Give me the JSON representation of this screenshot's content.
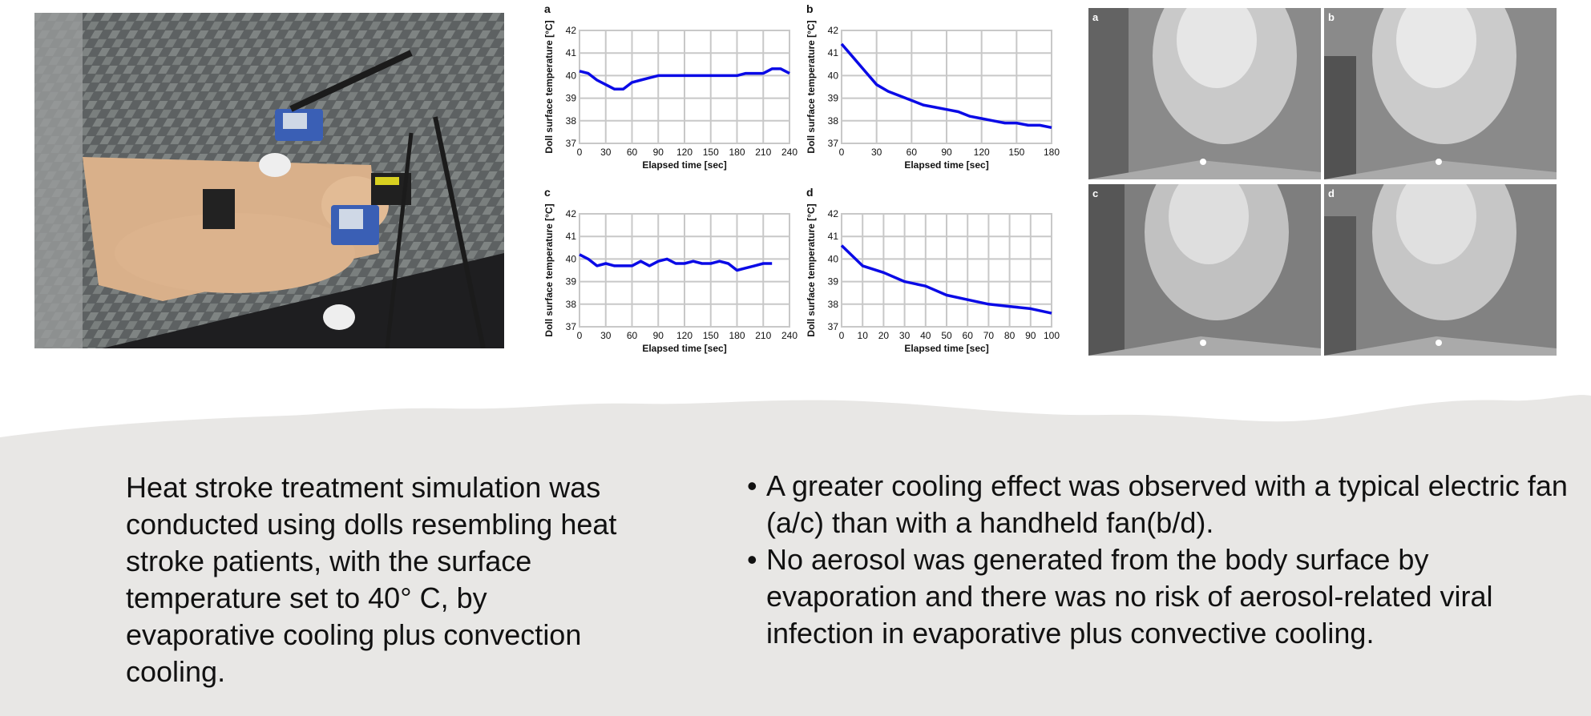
{
  "colors": {
    "series": "#0a0ae6",
    "band": "#e8e7e5",
    "grid": "#c8c8c8"
  },
  "photo": {
    "description_icon": "mannequin-photo"
  },
  "chart_data": [
    {
      "panel": "a",
      "type": "line",
      "xlabel": "Elapsed time [sec]",
      "ylabel": "Doll surface temperature [°C]",
      "xlim": [
        0,
        240
      ],
      "ylim": [
        37,
        42
      ],
      "xticks": [
        "0",
        "30",
        "60",
        "90",
        "120",
        "150",
        "180",
        "210",
        "240"
      ],
      "yticks": [
        "37",
        "38",
        "39",
        "40",
        "41",
        "42"
      ],
      "x": [
        0,
        10,
        20,
        30,
        40,
        50,
        60,
        70,
        80,
        90,
        100,
        110,
        120,
        130,
        140,
        150,
        160,
        170,
        180,
        190,
        200,
        210,
        220,
        230,
        240
      ],
      "y": [
        40.2,
        40.1,
        39.8,
        39.6,
        39.4,
        39.4,
        39.7,
        39.8,
        39.9,
        40.0,
        40.0,
        40.0,
        40.0,
        40.0,
        40.0,
        40.0,
        40.0,
        40.0,
        40.0,
        40.1,
        40.1,
        40.1,
        40.3,
        40.3,
        40.1
      ]
    },
    {
      "panel": "b",
      "type": "line",
      "xlabel": "Elapsed time [sec]",
      "ylabel": "Doll surface temperature [°C]",
      "xlim": [
        0,
        180
      ],
      "ylim": [
        37,
        42
      ],
      "xticks": [
        "0",
        "30",
        "60",
        "90",
        "120",
        "150",
        "180"
      ],
      "yticks": [
        "37",
        "38",
        "39",
        "40",
        "41",
        "42"
      ],
      "x": [
        0,
        10,
        20,
        30,
        40,
        50,
        60,
        70,
        80,
        90,
        100,
        110,
        120,
        130,
        140,
        150,
        160,
        170,
        180
      ],
      "y": [
        41.4,
        40.8,
        40.2,
        39.6,
        39.3,
        39.1,
        38.9,
        38.7,
        38.6,
        38.5,
        38.4,
        38.2,
        38.1,
        38.0,
        37.9,
        37.9,
        37.8,
        37.8,
        37.7
      ]
    },
    {
      "panel": "c",
      "type": "line",
      "xlabel": "Elapsed time [sec]",
      "ylabel": "Doll surface temperature [°C]",
      "xlim": [
        0,
        240
      ],
      "ylim": [
        37,
        42
      ],
      "xticks": [
        "0",
        "30",
        "60",
        "90",
        "120",
        "150",
        "180",
        "210",
        "240"
      ],
      "yticks": [
        "37",
        "38",
        "39",
        "40",
        "41",
        "42"
      ],
      "x": [
        0,
        10,
        20,
        30,
        40,
        50,
        60,
        70,
        80,
        90,
        100,
        110,
        120,
        130,
        140,
        150,
        160,
        170,
        180,
        190,
        200,
        210,
        220
      ],
      "y": [
        40.2,
        40.0,
        39.7,
        39.8,
        39.7,
        39.7,
        39.7,
        39.9,
        39.7,
        39.9,
        40.0,
        39.8,
        39.8,
        39.9,
        39.8,
        39.8,
        39.9,
        39.8,
        39.5,
        39.6,
        39.7,
        39.8,
        39.8
      ]
    },
    {
      "panel": "d",
      "type": "line",
      "xlabel": "Elapsed time [sec]",
      "ylabel": "Doll surface temperature [°C]",
      "xlim": [
        0,
        100
      ],
      "ylim": [
        37,
        42
      ],
      "xticks": [
        "0",
        "10",
        "20",
        "30",
        "40",
        "50",
        "60",
        "70",
        "80",
        "90",
        "100"
      ],
      "yticks": [
        "37",
        "38",
        "39",
        "40",
        "41",
        "42"
      ],
      "x": [
        0,
        10,
        20,
        30,
        40,
        50,
        60,
        70,
        80,
        90,
        100
      ],
      "y": [
        40.6,
        39.7,
        39.4,
        39.0,
        38.8,
        38.4,
        38.2,
        38.0,
        37.9,
        37.8,
        37.6
      ]
    }
  ],
  "schlieren": {
    "panels": [
      "a",
      "b",
      "c",
      "d"
    ]
  },
  "summary": {
    "left_text": "Heat stroke treatment simulation was conducted using dolls resembling heat stroke patients, with the surface temperature set to 40° C, by evaporative cooling plus convection cooling.",
    "bullets": [
      {
        "dot": "•",
        "text": "A greater cooling effect was observed with a typical electric fan (a/c) than with a handheld fan(b/d)."
      },
      {
        "dot": "•",
        "text": "No aerosol was generated from the body surface by evaporation and there was no risk of aerosol-related viral infection in evaporative plus convective cooling."
      }
    ]
  }
}
